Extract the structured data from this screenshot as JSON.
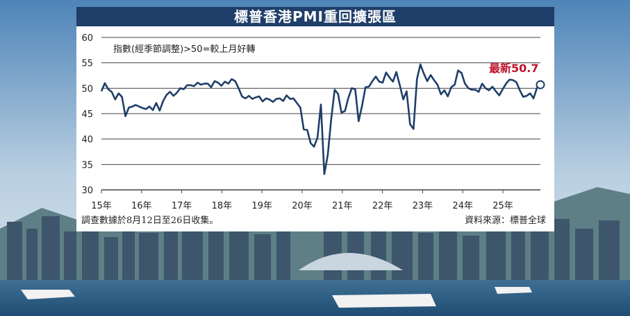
{
  "title": "標普香港PMI重回擴張區",
  "footer_left": "調查數據於8月12日至26日收集。",
  "footer_right": "資料來源：標普全球",
  "colors": {
    "title_bg": "#1f3e69",
    "line": "#1f3e69",
    "callout": "#c0142c",
    "marker_fill": "#ffffff"
  },
  "chart_data": {
    "type": "line",
    "note": "指數(經季節調整)>50=較上月好轉",
    "callout": "最新50.7",
    "y_ticks": [
      "60",
      "55",
      "50",
      "45",
      "40",
      "35",
      "30"
    ],
    "ylim": [
      30,
      60
    ],
    "x_ticks": [
      "15年",
      "16年",
      "17年",
      "18年",
      "19年",
      "20年",
      "21年",
      "22年",
      "23年",
      "24年",
      "25年"
    ],
    "grid": "horizontal",
    "series": [
      {
        "values": [
          49.4,
          51.0,
          49.8,
          49.3,
          47.8,
          49.0,
          48.3,
          44.5,
          46.2,
          46.4,
          46.7,
          46.4,
          46.1,
          45.9,
          46.4,
          45.7,
          47.1,
          45.6,
          47.5,
          48.7,
          49.3,
          48.5,
          49.1,
          50.0,
          49.8,
          50.6,
          50.6,
          50.4,
          51.1,
          50.7,
          50.9,
          50.9,
          50.2,
          51.4,
          51.1,
          50.5,
          51.3,
          50.9,
          51.8,
          51.4,
          50.0,
          48.4,
          48.0,
          48.5,
          47.9,
          48.2,
          48.4,
          47.4,
          48.0,
          47.8,
          47.3,
          47.9,
          48.0,
          47.5,
          48.6,
          47.9,
          48.0,
          47.1,
          46.2,
          41.9,
          41.8,
          39.2,
          38.5,
          40.3,
          46.8,
          33.1,
          36.9,
          43.9,
          49.7,
          48.9,
          45.2,
          45.5,
          48.1,
          50.0,
          49.8,
          43.5,
          46.6,
          50.2,
          50.3,
          51.4,
          52.3,
          51.3,
          51.1,
          53.1,
          52.1,
          51.3,
          53.2,
          50.6,
          47.8,
          49.4,
          42.9,
          42.0,
          51.8,
          54.7,
          52.9,
          51.4,
          52.6,
          51.6,
          50.7,
          48.8,
          49.6,
          48.4,
          50.2,
          50.7,
          53.5,
          53.0,
          50.9,
          50.0,
          49.7,
          49.7,
          49.3,
          50.9,
          50.0,
          49.6,
          50.3,
          49.4,
          48.6,
          49.8,
          50.9,
          51.7,
          51.6,
          51.2,
          49.6,
          48.3,
          48.5,
          49.0,
          48.0,
          50.1,
          50.7
        ]
      }
    ]
  }
}
